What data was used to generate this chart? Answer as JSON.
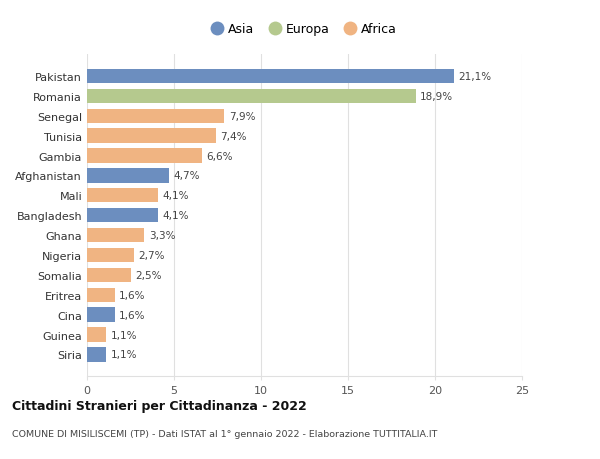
{
  "countries": [
    "Pakistan",
    "Romania",
    "Senegal",
    "Tunisia",
    "Gambia",
    "Afghanistan",
    "Mali",
    "Bangladesh",
    "Ghana",
    "Nigeria",
    "Somalia",
    "Eritrea",
    "Cina",
    "Guinea",
    "Siria"
  ],
  "values": [
    21.1,
    18.9,
    7.9,
    7.4,
    6.6,
    4.7,
    4.1,
    4.1,
    3.3,
    2.7,
    2.5,
    1.6,
    1.6,
    1.1,
    1.1
  ],
  "labels": [
    "21,1%",
    "18,9%",
    "7,9%",
    "7,4%",
    "6,6%",
    "4,7%",
    "4,1%",
    "4,1%",
    "3,3%",
    "2,7%",
    "2,5%",
    "1,6%",
    "1,6%",
    "1,1%",
    "1,1%"
  ],
  "continents": [
    "Asia",
    "Europa",
    "Africa",
    "Africa",
    "Africa",
    "Asia",
    "Africa",
    "Asia",
    "Africa",
    "Africa",
    "Africa",
    "Africa",
    "Asia",
    "Africa",
    "Asia"
  ],
  "colors": {
    "Asia": "#6c8ebf",
    "Europa": "#b5c98e",
    "Africa": "#f0b482"
  },
  "title": "Cittadini Stranieri per Cittadinanza - 2022",
  "subtitle": "COMUNE DI MISILISCEMI (TP) - Dati ISTAT al 1° gennaio 2022 - Elaborazione TUTTITALIA.IT",
  "xlim": [
    0,
    25
  ],
  "xticks": [
    0,
    5,
    10,
    15,
    20,
    25
  ],
  "legend_labels": [
    "Asia",
    "Europa",
    "Africa"
  ],
  "background_color": "#ffffff",
  "grid_color": "#e0e0e0"
}
